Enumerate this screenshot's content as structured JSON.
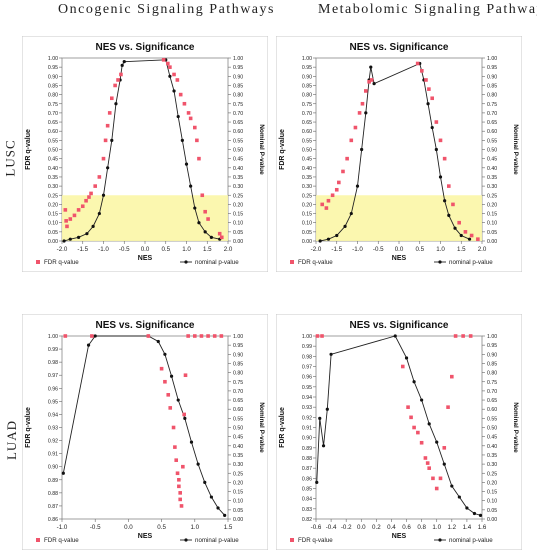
{
  "column_titles": [
    "Oncogenic Signaling Pathways",
    "Metabolomic Signaling Pathways"
  ],
  "row_labels": [
    "LUSC",
    "LUAD"
  ],
  "chart_data": [
    {
      "type": "scatter",
      "title": "NES vs. Significance",
      "xlabel": "NES",
      "ylabel": "FDR q-value",
      "y2label": "Nominal P-value",
      "xlim": [
        -2.0,
        2.0
      ],
      "ylim": [
        0,
        1.0
      ],
      "xticks": [
        "-2.0",
        "-1.5",
        "-1.0",
        "-0.5",
        "0.0",
        "0.5",
        "1.0",
        "1.5",
        "2.0"
      ],
      "yticks": [
        "0.00",
        "0.05",
        "0.10",
        "0.15",
        "0.20",
        "0.25",
        "0.30",
        "0.35",
        "0.40",
        "0.45",
        "0.50",
        "0.55",
        "0.60",
        "0.65",
        "0.70",
        "0.75",
        "0.80",
        "0.85",
        "0.90",
        "0.95",
        "1.00"
      ],
      "y2ticks": [
        "0.00",
        "0.05",
        "0.10",
        "0.15",
        "0.20",
        "0.25",
        "0.30",
        "0.35",
        "0.40",
        "0.45",
        "0.50",
        "0.55",
        "0.60",
        "0.65",
        "0.70",
        "0.75",
        "0.80",
        "0.85",
        "0.90",
        "0.95",
        "1.00"
      ],
      "highlight_band": [
        0,
        0.25
      ],
      "legend": [
        "FDR q-value",
        "nominal p-value"
      ],
      "series": [
        {
          "name": "FDR q-value",
          "points": [
            [
              -1.92,
              0.17
            ],
            [
              -1.9,
              0.11
            ],
            [
              -1.88,
              0.08
            ],
            [
              -1.8,
              0.12
            ],
            [
              -1.7,
              0.14
            ],
            [
              -1.6,
              0.17
            ],
            [
              -1.5,
              0.19
            ],
            [
              -1.42,
              0.22
            ],
            [
              -1.35,
              0.24
            ],
            [
              -1.3,
              0.26
            ],
            [
              -1.2,
              0.3
            ],
            [
              -1.1,
              0.35
            ],
            [
              -1.0,
              0.45
            ],
            [
              -0.95,
              0.55
            ],
            [
              -0.9,
              0.63
            ],
            [
              -0.85,
              0.7
            ],
            [
              -0.8,
              0.78
            ],
            [
              -0.72,
              0.85
            ],
            [
              -0.65,
              0.88
            ],
            [
              -0.58,
              0.91
            ],
            [
              0.45,
              0.99
            ],
            [
              0.55,
              0.97
            ],
            [
              0.6,
              0.95
            ],
            [
              0.7,
              0.91
            ],
            [
              0.78,
              0.88
            ],
            [
              0.86,
              0.8
            ],
            [
              0.95,
              0.75
            ],
            [
              1.05,
              0.7
            ],
            [
              1.1,
              0.67
            ],
            [
              1.2,
              0.62
            ],
            [
              1.25,
              0.55
            ],
            [
              1.3,
              0.45
            ],
            [
              1.38,
              0.25
            ],
            [
              1.45,
              0.16
            ],
            [
              1.52,
              0.12
            ],
            [
              1.8,
              0.04
            ],
            [
              1.85,
              0.02
            ]
          ]
        },
        {
          "name": "nominal p-value",
          "points": [
            [
              -1.95,
              0.0
            ],
            [
              -1.8,
              0.01
            ],
            [
              -1.6,
              0.02
            ],
            [
              -1.4,
              0.04
            ],
            [
              -1.25,
              0.08
            ],
            [
              -1.1,
              0.15
            ],
            [
              -1.0,
              0.25
            ],
            [
              -0.9,
              0.4
            ],
            [
              -0.8,
              0.55
            ],
            [
              -0.7,
              0.75
            ],
            [
              -0.6,
              0.88
            ],
            [
              -0.55,
              0.96
            ],
            [
              -0.5,
              0.98
            ],
            [
              0.5,
              0.99
            ],
            [
              0.6,
              0.9
            ],
            [
              0.7,
              0.82
            ],
            [
              0.8,
              0.68
            ],
            [
              0.9,
              0.55
            ],
            [
              1.0,
              0.42
            ],
            [
              1.1,
              0.3
            ],
            [
              1.2,
              0.18
            ],
            [
              1.3,
              0.1
            ],
            [
              1.45,
              0.05
            ],
            [
              1.6,
              0.02
            ],
            [
              1.8,
              0.01
            ]
          ]
        }
      ]
    },
    {
      "type": "scatter",
      "title": "NES vs. Significance",
      "xlabel": "NES",
      "ylabel": "FDR q-value",
      "y2label": "Nominal P-value",
      "xlim": [
        -2.0,
        2.0
      ],
      "ylim": [
        0,
        1.0
      ],
      "xticks": [
        "-2.0",
        "-1.5",
        "-1.0",
        "-0.5",
        "0.0",
        "0.5",
        "1.0",
        "1.5",
        "2.0"
      ],
      "yticks": [
        "0.00",
        "0.05",
        "0.10",
        "0.15",
        "0.20",
        "0.25",
        "0.30",
        "0.35",
        "0.40",
        "0.45",
        "0.50",
        "0.55",
        "0.60",
        "0.65",
        "0.70",
        "0.75",
        "0.80",
        "0.85",
        "0.90",
        "0.95",
        "1.00"
      ],
      "y2ticks": [
        "0.00",
        "0.05",
        "0.10",
        "0.15",
        "0.20",
        "0.25",
        "0.30",
        "0.35",
        "0.40",
        "0.45",
        "0.50",
        "0.55",
        "0.60",
        "0.65",
        "0.70",
        "0.75",
        "0.80",
        "0.85",
        "0.90",
        "0.95",
        "1.00"
      ],
      "highlight_band": [
        0,
        0.25
      ],
      "legend": [
        "FDR q-value",
        "nominal p-value"
      ],
      "series": [
        {
          "name": "FDR q-value",
          "points": [
            [
              -1.85,
              0.2
            ],
            [
              -1.75,
              0.18
            ],
            [
              -1.7,
              0.22
            ],
            [
              -1.6,
              0.25
            ],
            [
              -1.5,
              0.28
            ],
            [
              -1.45,
              0.32
            ],
            [
              -1.35,
              0.38
            ],
            [
              -1.25,
              0.45
            ],
            [
              -1.15,
              0.55
            ],
            [
              -1.05,
              0.62
            ],
            [
              -0.95,
              0.7
            ],
            [
              -0.88,
              0.75
            ],
            [
              -0.8,
              0.82
            ],
            [
              -0.72,
              0.87
            ],
            [
              -0.66,
              0.88
            ],
            [
              0.45,
              0.97
            ],
            [
              0.55,
              0.93
            ],
            [
              0.65,
              0.88
            ],
            [
              0.72,
              0.83
            ],
            [
              0.8,
              0.78
            ],
            [
              0.9,
              0.65
            ],
            [
              1.0,
              0.55
            ],
            [
              1.1,
              0.45
            ],
            [
              1.2,
              0.3
            ],
            [
              1.3,
              0.2
            ],
            [
              1.45,
              0.1
            ],
            [
              1.6,
              0.05
            ],
            [
              1.75,
              0.03
            ],
            [
              1.9,
              0.01
            ]
          ]
        },
        {
          "name": "nominal p-value",
          "points": [
            [
              -1.9,
              0.0
            ],
            [
              -1.7,
              0.01
            ],
            [
              -1.5,
              0.03
            ],
            [
              -1.3,
              0.08
            ],
            [
              -1.15,
              0.15
            ],
            [
              -1.0,
              0.3
            ],
            [
              -0.9,
              0.5
            ],
            [
              -0.8,
              0.7
            ],
            [
              -0.72,
              0.88
            ],
            [
              -0.68,
              0.95
            ],
            [
              -0.6,
              0.86
            ],
            [
              0.5,
              0.97
            ],
            [
              0.6,
              0.88
            ],
            [
              0.7,
              0.75
            ],
            [
              0.8,
              0.62
            ],
            [
              0.9,
              0.5
            ],
            [
              1.0,
              0.35
            ],
            [
              1.1,
              0.22
            ],
            [
              1.2,
              0.14
            ],
            [
              1.35,
              0.07
            ],
            [
              1.5,
              0.03
            ],
            [
              1.7,
              0.01
            ]
          ]
        }
      ]
    },
    {
      "type": "scatter",
      "title": "NES vs. Significance",
      "xlabel": "NES",
      "ylabel": "FDR q-value",
      "y2label": "Nominal P-value",
      "xlim": [
        -1.0,
        1.5
      ],
      "ylim": [
        0.86,
        1.0
      ],
      "xticks": [
        "-1.0",
        "-0.5",
        "0.0",
        "0.5",
        "1.0",
        "1.5"
      ],
      "yticks": [
        "0.86",
        "0.87",
        "0.88",
        "0.89",
        "0.90",
        "0.91",
        "0.92",
        "0.93",
        "0.94",
        "0.95",
        "0.96",
        "0.97",
        "0.98",
        "0.99",
        "1.00"
      ],
      "y2ticks": [
        "0.00",
        "0.05",
        "0.10",
        "0.15",
        "0.20",
        "0.25",
        "0.30",
        "0.35",
        "0.40",
        "0.45",
        "0.50",
        "0.55",
        "0.60",
        "0.65",
        "0.70",
        "0.75",
        "0.80",
        "0.85",
        "0.90",
        "0.95",
        "1.00"
      ],
      "legend": [
        "FDR q-value",
        "nominal p-value"
      ],
      "series": [
        {
          "name": "FDR q-value",
          "points": [
            [
              -0.95,
              1.0
            ],
            [
              -0.55,
              1.0
            ],
            [
              0.3,
              1.0
            ],
            [
              0.5,
              0.975
            ],
            [
              0.55,
              0.965
            ],
            [
              0.6,
              0.955
            ],
            [
              0.63,
              0.945
            ],
            [
              0.68,
              0.93
            ],
            [
              0.7,
              0.915
            ],
            [
              0.72,
              0.905
            ],
            [
              0.74,
              0.895
            ],
            [
              0.76,
              0.89
            ],
            [
              0.76,
              0.885
            ],
            [
              0.78,
              0.88
            ],
            [
              0.78,
              0.875
            ],
            [
              0.8,
              0.87
            ],
            [
              0.82,
              0.9
            ],
            [
              0.84,
              0.94
            ],
            [
              0.86,
              0.97
            ],
            [
              0.9,
              1.0
            ],
            [
              1.0,
              1.0
            ],
            [
              1.1,
              1.0
            ],
            [
              1.2,
              1.0
            ],
            [
              1.3,
              1.0
            ],
            [
              1.4,
              1.0
            ]
          ]
        },
        {
          "name": "nominal p-value",
          "points": [
            [
              -0.98,
              0.25
            ],
            [
              -0.6,
              0.95
            ],
            [
              -0.5,
              1.0
            ],
            [
              0.3,
              1.0
            ],
            [
              0.45,
              0.97
            ],
            [
              0.55,
              0.9
            ],
            [
              0.65,
              0.78
            ],
            [
              0.75,
              0.65
            ],
            [
              0.85,
              0.55
            ],
            [
              0.95,
              0.42
            ],
            [
              1.05,
              0.3
            ],
            [
              1.15,
              0.2
            ],
            [
              1.25,
              0.12
            ],
            [
              1.35,
              0.06
            ],
            [
              1.45,
              0.02
            ]
          ]
        }
      ]
    },
    {
      "type": "scatter",
      "title": "NES vs. Significance",
      "xlabel": "NES",
      "ylabel": "FDR q-value",
      "y2label": "Nominal P-value",
      "xlim": [
        -0.6,
        1.6
      ],
      "ylim": [
        0.82,
        1.0
      ],
      "xticks": [
        "-0.6",
        "-0.4",
        "-0.2",
        "0.0",
        "0.2",
        "0.4",
        "0.6",
        "0.8",
        "1.0",
        "1.2",
        "1.4",
        "1.6"
      ],
      "yticks": [
        "0.82",
        "0.83",
        "0.84",
        "0.85",
        "0.86",
        "0.87",
        "0.88",
        "0.89",
        "0.90",
        "0.91",
        "0.92",
        "0.93",
        "0.94",
        "0.95",
        "0.96",
        "0.97",
        "0.98",
        "0.99",
        "1.00"
      ],
      "y2ticks": [
        "0.00",
        "0.05",
        "0.10",
        "0.15",
        "0.20",
        "0.25",
        "0.30",
        "0.35",
        "0.40",
        "0.45",
        "0.50",
        "0.55",
        "0.60",
        "0.65",
        "0.70",
        "0.75",
        "0.80",
        "0.85",
        "0.90",
        "0.95",
        "1.00"
      ],
      "legend": [
        "FDR q-value",
        "nominal p-value"
      ],
      "series": [
        {
          "name": "FDR q-value",
          "points": [
            [
              -0.58,
              1.0
            ],
            [
              -0.52,
              1.0
            ],
            [
              0.55,
              0.97
            ],
            [
              0.62,
              0.93
            ],
            [
              0.66,
              0.92
            ],
            [
              0.7,
              0.91
            ],
            [
              0.75,
              0.905
            ],
            [
              0.8,
              0.895
            ],
            [
              0.85,
              0.88
            ],
            [
              0.88,
              0.875
            ],
            [
              0.9,
              0.87
            ],
            [
              0.95,
              0.86
            ],
            [
              1.0,
              0.85
            ],
            [
              1.05,
              0.86
            ],
            [
              1.1,
              0.89
            ],
            [
              1.15,
              0.93
            ],
            [
              1.2,
              0.96
            ],
            [
              1.25,
              1.0
            ],
            [
              1.35,
              1.0
            ],
            [
              1.45,
              1.0
            ]
          ]
        },
        {
          "name": "nominal p-value",
          "points": [
            [
              -0.59,
              0.2
            ],
            [
              -0.55,
              0.55
            ],
            [
              -0.5,
              0.4
            ],
            [
              -0.45,
              0.6
            ],
            [
              -0.4,
              0.9
            ],
            [
              0.45,
              1.0
            ],
            [
              0.6,
              0.88
            ],
            [
              0.7,
              0.75
            ],
            [
              0.8,
              0.65
            ],
            [
              0.9,
              0.52
            ],
            [
              1.0,
              0.42
            ],
            [
              1.1,
              0.3
            ],
            [
              1.2,
              0.18
            ],
            [
              1.3,
              0.12
            ],
            [
              1.4,
              0.06
            ],
            [
              1.5,
              0.03
            ],
            [
              1.58,
              0.02
            ]
          ]
        }
      ]
    }
  ]
}
